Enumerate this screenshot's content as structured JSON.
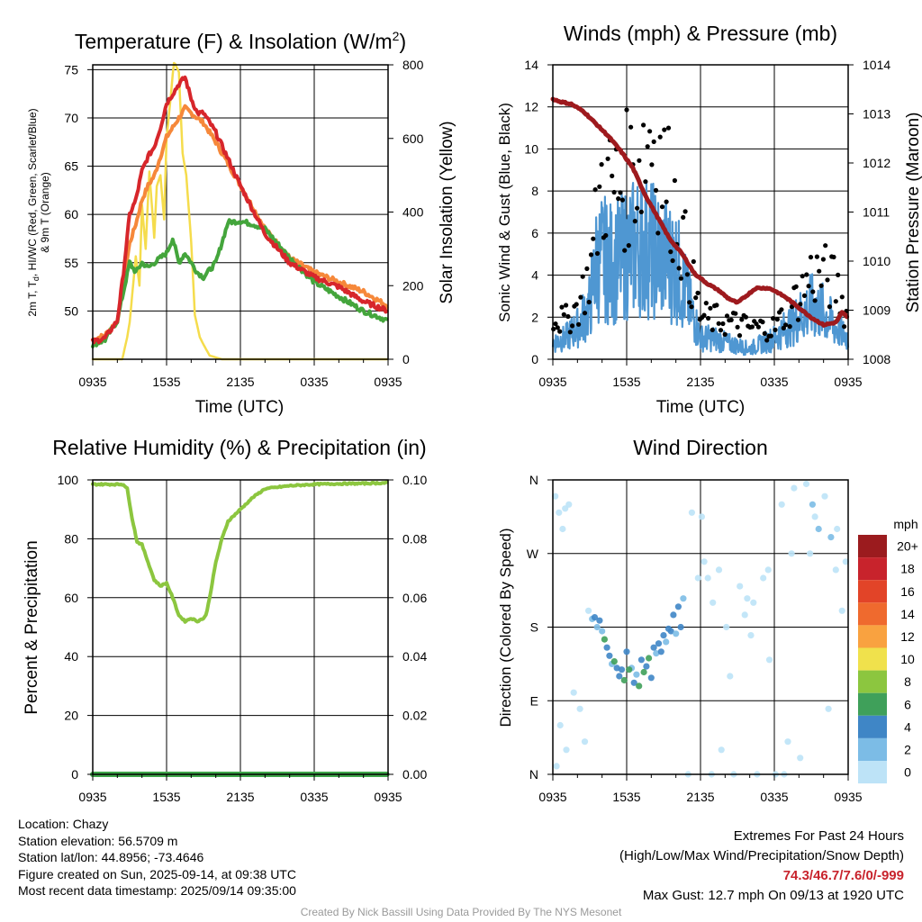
{
  "panels": {
    "temperature": {
      "title_main": "Temperature (F) & Insolation (W/m",
      "title_sup": "2",
      "title_end": ")",
      "ylabel_left_line1": "2m T, T",
      "ylabel_left_sub": "d",
      "ylabel_left_line1_end": ", HI/WC (Red, Green, Scarlet/Blue)",
      "ylabel_left_line2": "& 9m T (Orange)",
      "ylabel_right": "Solar Insolation (Yellow)",
      "xlabel": "Time (UTC)"
    },
    "winds": {
      "title": "Winds (mph) & Pressure (mb)",
      "ylabel_left": "Sonic Wind & Gust (Blue, Black)",
      "ylabel_right": "Station Pressure (Maroon)",
      "xlabel": "Time (UTC)"
    },
    "humidity": {
      "title": "Relative Humidity (%) & Precipitation (in)",
      "ylabel_left": "Percent & Precipitation"
    },
    "direction": {
      "title": "Wind Direction",
      "ylabel_left": "Direction (Colored By Speed)",
      "legend_title": "mph"
    }
  },
  "colors": {
    "temp_red": "#d7262b",
    "temp_orange": "#f6883a",
    "dewpoint_green": "#44a53c",
    "insolation_yellow": "#f5dc4c",
    "wind_blue": "#4f97d2",
    "gust_black": "#000000",
    "pressure_maroon": "#9e1a1e",
    "rh_green": "#8cc63f",
    "precip_green": "#3fa64a"
  },
  "chart_data": [
    {
      "type": "line",
      "panel": "temperature",
      "x_ticks": [
        "0935",
        "1535",
        "2135",
        "0335",
        "0935"
      ],
      "x_range_hours": [
        0,
        24
      ],
      "ylim_left": [
        45,
        75.5
      ],
      "yticks_left": [
        "50",
        "55",
        "60",
        "65",
        "70",
        "75"
      ],
      "ylim_right": [
        0,
        800
      ],
      "yticks_right": [
        "0",
        "200",
        "400",
        "600",
        "800"
      ],
      "series": [
        {
          "key": "temp_2m",
          "axis": "left",
          "x": [
            0,
            1,
            2,
            2.5,
            3,
            3.5,
            4,
            4.5,
            5,
            5.5,
            6,
            7,
            7.5,
            8,
            8.5,
            9,
            10,
            12,
            14,
            16,
            18,
            20,
            22,
            24
          ],
          "y": [
            46.8,
            47.2,
            49,
            54,
            60,
            61.5,
            64.5,
            66,
            67,
            69,
            71.5,
            73.5,
            74.2,
            72,
            70.5,
            70.5,
            68.5,
            63,
            58,
            55,
            53.5,
            52.5,
            51,
            50
          ]
        },
        {
          "key": "temp_9m",
          "axis": "left",
          "x": [
            0,
            1,
            2,
            2.5,
            3,
            3.5,
            4,
            4.5,
            5,
            5.5,
            6,
            7,
            7.5,
            8,
            9,
            10,
            12,
            14,
            16,
            18,
            20,
            22,
            24
          ],
          "y": [
            47,
            47.5,
            49,
            53,
            57,
            59,
            61.5,
            63,
            64,
            66,
            68,
            70,
            71,
            70.5,
            69.5,
            67.5,
            63,
            58.5,
            55.5,
            54,
            53,
            52,
            50.5
          ]
        },
        {
          "key": "dewpoint",
          "axis": "left",
          "x": [
            0,
            1,
            2,
            2.5,
            3,
            3.5,
            4,
            4.5,
            5,
            5.5,
            6,
            6.5,
            7,
            7.5,
            8,
            8.5,
            9,
            10,
            11,
            12,
            13,
            14,
            16,
            18,
            20,
            22,
            24
          ],
          "y": [
            46.5,
            47,
            49,
            52,
            55,
            54,
            55,
            54.5,
            55,
            55.5,
            56,
            57.5,
            55,
            56,
            55,
            54,
            53.5,
            55,
            59.2,
            59.3,
            59,
            58.5,
            55.5,
            53,
            51.5,
            50,
            49
          ]
        },
        {
          "key": "insolation",
          "axis": "right",
          "x": [
            0,
            2.4,
            2.8,
            3,
            3.5,
            3.8,
            4,
            4.3,
            4.6,
            5,
            5.2,
            5.5,
            5.8,
            6,
            6.3,
            6.6,
            7,
            7.3,
            7.6,
            8,
            8.3,
            8.7,
            9,
            9.5,
            10.5,
            11,
            24
          ],
          "y": [
            0,
            0,
            60,
            100,
            280,
            200,
            420,
            300,
            510,
            330,
            470,
            500,
            380,
            600,
            700,
            810,
            780,
            560,
            500,
            320,
            120,
            60,
            40,
            10,
            0,
            0,
            0
          ]
        }
      ]
    },
    {
      "type": "line",
      "panel": "winds",
      "x_ticks": [
        "0935",
        "1535",
        "2135",
        "0335",
        "0935"
      ],
      "x_range_hours": [
        0,
        24
      ],
      "ylim_left": [
        0,
        14
      ],
      "yticks_left": [
        "0",
        "2",
        "4",
        "6",
        "8",
        "10",
        "12",
        "14"
      ],
      "ylim_right": [
        1008,
        1014
      ],
      "yticks_right": [
        "1008",
        "1009",
        "1010",
        "1011",
        "1012",
        "1013",
        "1014"
      ],
      "series": [
        {
          "key": "sonic_wind",
          "axis": "left",
          "x": [
            0,
            1,
            2,
            3,
            3.5,
            4,
            5,
            6,
            7,
            8,
            9,
            10,
            12,
            13,
            14,
            16,
            18,
            19,
            20,
            21,
            22,
            23,
            24
          ],
          "y": [
            0.8,
            1,
            1.5,
            2.5,
            4.5,
            4.8,
            4.5,
            5,
            5.5,
            5.2,
            4.8,
            4.5,
            1,
            1,
            0.8,
            0.5,
            1,
            1.5,
            2,
            2.5,
            2.2,
            1.5,
            1
          ]
        },
        {
          "key": "gust",
          "axis": "left",
          "x": [
            0,
            1,
            2,
            3,
            4,
            5,
            6,
            7,
            8,
            9,
            10,
            12,
            14,
            16,
            18,
            20,
            21,
            22,
            23,
            24
          ],
          "y": [
            2,
            1.8,
            2.5,
            4,
            8.5,
            8,
            8.5,
            9.5,
            11,
            9,
            7,
            2,
            1.8,
            1.5,
            1.5,
            3,
            4,
            4,
            3.5,
            2
          ]
        },
        {
          "key": "pressure",
          "axis": "right",
          "x": [
            0,
            0.6,
            1.5,
            2.5,
            3.5,
            4.5,
            5.5,
            6.5,
            7.5,
            8.5,
            9.5,
            10.5,
            11.5,
            12.5,
            13.5,
            14.2,
            15,
            16,
            16.5,
            17,
            17.5,
            18,
            19,
            20,
            21,
            22,
            23,
            23.5,
            24
          ],
          "y": [
            1013.3,
            1013.25,
            1013.2,
            1013.05,
            1012.8,
            1012.55,
            1012.25,
            1011.9,
            1011.35,
            1010.9,
            1010.45,
            1010.15,
            1009.75,
            1009.55,
            1009.4,
            1009.25,
            1009.15,
            1009.35,
            1009.45,
            1009.45,
            1009.45,
            1009.4,
            1009.25,
            1009.05,
            1008.85,
            1008.7,
            1008.75,
            1008.95,
            1008.85
          ]
        }
      ]
    },
    {
      "type": "line",
      "panel": "humidity",
      "x_ticks": [
        "0935",
        "1535",
        "2135",
        "0335",
        "0935"
      ],
      "x_range_hours": [
        0,
        24
      ],
      "ylim_left": [
        0,
        100
      ],
      "yticks_left": [
        "0",
        "20",
        "40",
        "60",
        "80",
        "100"
      ],
      "ylim_right": [
        0,
        0.1
      ],
      "yticks_right": [
        "0.00",
        "0.02",
        "0.04",
        "0.06",
        "0.08",
        "0.10"
      ],
      "series": [
        {
          "key": "relative_humidity",
          "axis": "left",
          "x": [
            0,
            2.5,
            2.8,
            3.2,
            3.6,
            4,
            4.5,
            5,
            5.5,
            6,
            6.5,
            7,
            7.5,
            8,
            8.5,
            9,
            9.2,
            9.5,
            10,
            10.5,
            11,
            12,
            13,
            14,
            16,
            18,
            20,
            22,
            24
          ],
          "y": [
            98.5,
            98.5,
            97,
            87,
            79,
            78,
            72,
            66,
            64,
            65,
            60,
            54,
            52,
            53,
            52,
            53,
            54,
            60,
            72,
            80,
            86,
            90,
            94,
            97,
            98,
            98.5,
            98.7,
            98.8,
            99
          ]
        },
        {
          "key": "precipitation",
          "axis": "right",
          "x": [
            0,
            24
          ],
          "y": [
            0,
            0
          ]
        }
      ]
    },
    {
      "type": "scatter",
      "panel": "direction",
      "x_ticks": [
        "0935",
        "1535",
        "2135",
        "0335",
        "0935"
      ],
      "x_range_hours": [
        0,
        24
      ],
      "y_ticks": [
        "N",
        "E",
        "S",
        "W",
        "N"
      ],
      "ylim_degrees": [
        0,
        360
      ],
      "legend": {
        "labels": [
          "0",
          "2",
          "4",
          "6",
          "8",
          "10",
          "12",
          "14",
          "16",
          "18",
          "20+"
        ],
        "colors": [
          "#bde3f7",
          "#7cbce6",
          "#3f86c6",
          "#3fa05a",
          "#8cc63f",
          "#f0e14c",
          "#f9a240",
          "#ef6a2e",
          "#e24428",
          "#c8232c",
          "#9b1b1e"
        ]
      },
      "points_hours": [
        0.2,
        0.5,
        0.8,
        1.0,
        1.3,
        1.7,
        2.2,
        2.6,
        0.3,
        0.6,
        1.1,
        2.9,
        3.2,
        3.6,
        4.0,
        4.4,
        4.8,
        5.2,
        5.6,
        6.0,
        6.4,
        6.8,
        7.2,
        7.6,
        8.0,
        8.4,
        8.8,
        9.2,
        9.6,
        10.0,
        10.4,
        3.4,
        3.8,
        4.2,
        4.6,
        5.0,
        5.4,
        5.8,
        6.2,
        6.6,
        7.0,
        7.4,
        7.8,
        8.2,
        8.6,
        9.0,
        9.4,
        9.8,
        10.2,
        10.6,
        11.0,
        11.3,
        11.8,
        12.3,
        12.6,
        13.0,
        13.5,
        14.1,
        14.7,
        15.2,
        15.6,
        16.1,
        16.6,
        17.1,
        17.6,
        18.1,
        18.6,
        19.1,
        19.6,
        20.1,
        20.6,
        21.1,
        21.6,
        22.1,
        22.6,
        23.1,
        23.5,
        23.8,
        12.1,
        12.9,
        16.3,
        17.5,
        18.8,
        20.9,
        21.3,
        22.4,
        23.0,
        13.7,
        14.4,
        15.8,
        19.4
      ],
      "points_deg": [
        340,
        320,
        300,
        325,
        330,
        100,
        80,
        40,
        10,
        60,
        30,
        200,
        190,
        180,
        175,
        155,
        135,
        130,
        128,
        150,
        130,
        122,
        140,
        132,
        118,
        148,
        150,
        162,
        175,
        172,
        180,
        192,
        188,
        165,
        145,
        138,
        120,
        115,
        128,
        112,
        108,
        125,
        142,
        155,
        160,
        170,
        178,
        195,
        205,
        215,
        0,
        320,
        240,
        260,
        240,
        210,
        250,
        180,
        0,
        230,
        195,
        170,
        0,
        240,
        140,
        0,
        330,
        40,
        350,
        20,
        355,
        330,
        300,
        340,
        290,
        300,
        200,
        260,
        315,
        0,
        210,
        250,
        0,
        270,
        315,
        80,
        250,
        30,
        120,
        215,
        270
      ],
      "points_speed": [
        0.5,
        0.3,
        0.4,
        0.6,
        0.2,
        0.5,
        0.4,
        0.3,
        0.6,
        0.2,
        0.3,
        0.8,
        2,
        3,
        2.5,
        4,
        3.5,
        4.5,
        5,
        4,
        3,
        3.5,
        5,
        4.5,
        4,
        3,
        5,
        2.5,
        4,
        3,
        4.5,
        4.5,
        5.5,
        6.5,
        5.5,
        6,
        5.8,
        6.2,
        6.5,
        5.5,
        7,
        6,
        6.5,
        5.5,
        5,
        5.2,
        5.5,
        4.5,
        4.2,
        3.5,
        0.4,
        0.5,
        0.3,
        0.2,
        0.4,
        0.3,
        0.5,
        0.2,
        0.3,
        0.4,
        0.6,
        0.2,
        0.5,
        0.4,
        0.7,
        0.3,
        0.8,
        0.4,
        1.2,
        0.6,
        1.5,
        2.2,
        3.5,
        0.8,
        2.5,
        1.0,
        0.8,
        0.5,
        0.3,
        0.2,
        0.6,
        0.5,
        1.5,
        0.6,
        1.3,
        0.4,
        0.9,
        0.3,
        0.8,
        0.7,
        0.5
      ]
    }
  ],
  "info_left": {
    "location": "Location: Chazy",
    "elevation": "Station elevation: 56.5709 m",
    "latlon": "Station lat/lon: 44.8956; -73.4646",
    "created": "Figure created on Sun, 2025-09-14, at 09:38 UTC",
    "recent": "Most recent data timestamp: 2025/09/14 09:35:00"
  },
  "info_right": {
    "heading": "Extremes For Past 24 Hours",
    "subheading": "(High/Low/Max Wind/Precipitation/Snow Depth)",
    "values": "74.3/46.7/7.6/0/-999",
    "max_gust": "Max Gust: 12.7 mph On 09/13 at 1920 UTC"
  },
  "credit": "Created By Nick Bassill Using Data Provided By The NYS Mesonet"
}
